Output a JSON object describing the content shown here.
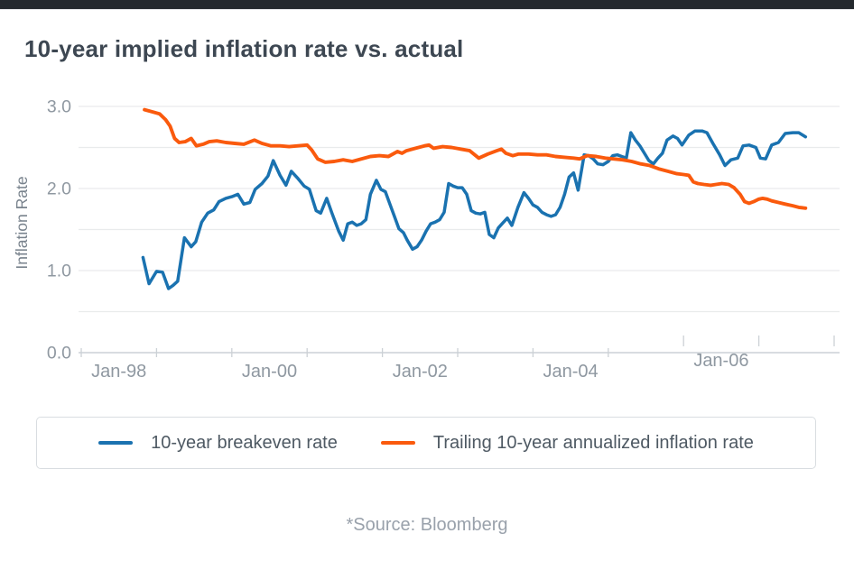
{
  "title": "10-year implied inflation rate vs. actual",
  "source": "*Source: Bloomberg",
  "colors": {
    "topbar": "#24292e",
    "grid": "#e9ebec",
    "axis_line": "#cbd0d5",
    "tick_mark": "#ccd1d6",
    "tick_label": "#8f98a1",
    "axis_title": "#79838d"
  },
  "chart_data": {
    "type": "line",
    "title": "10-year implied inflation rate vs. actual",
    "xlabel": "",
    "ylabel": "Inflation Rate",
    "ylim": [
      0.0,
      3.0
    ],
    "grid_step": 0.5,
    "grid": "horizontal-only",
    "ytick_labels": [
      "0.0",
      "1.0",
      "2.0",
      "3.0"
    ],
    "xtick_labels": [
      "Jan-98",
      "Jan-00",
      "Jan-02",
      "Jan-04",
      "Jan-06"
    ],
    "x_range_years": [
      1998,
      2008
    ],
    "legend_position": "bottom",
    "series": [
      {
        "name": "10-year breakeven rate",
        "color": "#1a72b0",
        "points": [
          [
            1998.82,
            1.16
          ],
          [
            1998.9,
            0.84
          ],
          [
            1999.0,
            0.99
          ],
          [
            1999.08,
            0.98
          ],
          [
            1999.16,
            0.78
          ],
          [
            1999.22,
            0.82
          ],
          [
            1999.28,
            0.87
          ],
          [
            1999.37,
            1.4
          ],
          [
            1999.46,
            1.29
          ],
          [
            1999.52,
            1.35
          ],
          [
            1999.6,
            1.59
          ],
          [
            1999.68,
            1.7
          ],
          [
            1999.76,
            1.74
          ],
          [
            1999.83,
            1.84
          ],
          [
            1999.92,
            1.88
          ],
          [
            2000.0,
            1.9
          ],
          [
            2000.08,
            1.93
          ],
          [
            2000.16,
            1.81
          ],
          [
            2000.24,
            1.83
          ],
          [
            2000.31,
            1.99
          ],
          [
            2000.4,
            2.06
          ],
          [
            2000.48,
            2.15
          ],
          [
            2000.55,
            2.34
          ],
          [
            2000.64,
            2.16
          ],
          [
            2000.72,
            2.04
          ],
          [
            2000.79,
            2.21
          ],
          [
            2000.88,
            2.12
          ],
          [
            2000.96,
            2.03
          ],
          [
            2001.03,
            1.99
          ],
          [
            2001.12,
            1.73
          ],
          [
            2001.18,
            1.7
          ],
          [
            2001.26,
            1.88
          ],
          [
            2001.33,
            1.7
          ],
          [
            2001.42,
            1.48
          ],
          [
            2001.48,
            1.37
          ],
          [
            2001.54,
            1.57
          ],
          [
            2001.6,
            1.59
          ],
          [
            2001.66,
            1.55
          ],
          [
            2001.72,
            1.57
          ],
          [
            2001.78,
            1.62
          ],
          [
            2001.84,
            1.93
          ],
          [
            2001.92,
            2.1
          ],
          [
            2001.98,
            1.99
          ],
          [
            2002.04,
            1.96
          ],
          [
            2002.1,
            1.81
          ],
          [
            2002.16,
            1.66
          ],
          [
            2002.22,
            1.51
          ],
          [
            2002.28,
            1.46
          ],
          [
            2002.33,
            1.37
          ],
          [
            2002.4,
            1.26
          ],
          [
            2002.46,
            1.29
          ],
          [
            2002.52,
            1.37
          ],
          [
            2002.58,
            1.48
          ],
          [
            2002.64,
            1.57
          ],
          [
            2002.7,
            1.59
          ],
          [
            2002.76,
            1.62
          ],
          [
            2002.82,
            1.71
          ],
          [
            2002.88,
            2.06
          ],
          [
            2002.94,
            2.03
          ],
          [
            2003.0,
            2.01
          ],
          [
            2003.06,
            2.01
          ],
          [
            2003.12,
            1.93
          ],
          [
            2003.18,
            1.73
          ],
          [
            2003.24,
            1.7
          ],
          [
            2003.3,
            1.69
          ],
          [
            2003.36,
            1.71
          ],
          [
            2003.42,
            1.44
          ],
          [
            2003.48,
            1.4
          ],
          [
            2003.54,
            1.52
          ],
          [
            2003.6,
            1.58
          ],
          [
            2003.66,
            1.64
          ],
          [
            2003.72,
            1.55
          ],
          [
            2003.8,
            1.77
          ],
          [
            2003.88,
            1.95
          ],
          [
            2003.94,
            1.88
          ],
          [
            2004.0,
            1.8
          ],
          [
            2004.06,
            1.77
          ],
          [
            2004.12,
            1.71
          ],
          [
            2004.18,
            1.68
          ],
          [
            2004.24,
            1.66
          ],
          [
            2004.3,
            1.68
          ],
          [
            2004.36,
            1.77
          ],
          [
            2004.42,
            1.93
          ],
          [
            2004.48,
            2.14
          ],
          [
            2004.54,
            2.19
          ],
          [
            2004.6,
            1.98
          ],
          [
            2004.68,
            2.41
          ],
          [
            2004.74,
            2.4
          ],
          [
            2004.8,
            2.36
          ],
          [
            2004.86,
            2.3
          ],
          [
            2004.93,
            2.29
          ],
          [
            2005.0,
            2.33
          ],
          [
            2005.06,
            2.4
          ],
          [
            2005.12,
            2.41
          ],
          [
            2005.18,
            2.39
          ],
          [
            2005.24,
            2.37
          ],
          [
            2005.3,
            2.68
          ],
          [
            2005.36,
            2.59
          ],
          [
            2005.42,
            2.52
          ],
          [
            2005.48,
            2.43
          ],
          [
            2005.54,
            2.34
          ],
          [
            2005.6,
            2.3
          ],
          [
            2005.66,
            2.37
          ],
          [
            2005.72,
            2.43
          ],
          [
            2005.78,
            2.59
          ],
          [
            2005.86,
            2.64
          ],
          [
            2005.92,
            2.61
          ],
          [
            2005.98,
            2.53
          ],
          [
            2006.07,
            2.65
          ],
          [
            2006.15,
            2.7
          ],
          [
            2006.25,
            2.7
          ],
          [
            2006.31,
            2.68
          ],
          [
            2006.39,
            2.55
          ],
          [
            2006.48,
            2.41
          ],
          [
            2006.55,
            2.28
          ],
          [
            2006.63,
            2.35
          ],
          [
            2006.72,
            2.37
          ],
          [
            2006.79,
            2.52
          ],
          [
            2006.87,
            2.53
          ],
          [
            2006.96,
            2.5
          ],
          [
            2007.02,
            2.37
          ],
          [
            2007.09,
            2.36
          ],
          [
            2007.17,
            2.53
          ],
          [
            2007.26,
            2.56
          ],
          [
            2007.35,
            2.67
          ],
          [
            2007.45,
            2.68
          ],
          [
            2007.53,
            2.68
          ],
          [
            2007.62,
            2.63
          ]
        ]
      },
      {
        "name": "Trailing 10-year annualized inflation rate",
        "color": "#fa5a0d",
        "points": [
          [
            1998.84,
            2.96
          ],
          [
            1998.96,
            2.93
          ],
          [
            1999.04,
            2.91
          ],
          [
            1999.12,
            2.84
          ],
          [
            1999.18,
            2.76
          ],
          [
            1999.24,
            2.61
          ],
          [
            1999.3,
            2.56
          ],
          [
            1999.38,
            2.57
          ],
          [
            1999.46,
            2.61
          ],
          [
            1999.53,
            2.52
          ],
          [
            1999.62,
            2.54
          ],
          [
            1999.7,
            2.57
          ],
          [
            1999.8,
            2.58
          ],
          [
            1999.92,
            2.56
          ],
          [
            2000.04,
            2.55
          ],
          [
            2000.16,
            2.54
          ],
          [
            2000.3,
            2.59
          ],
          [
            2000.4,
            2.55
          ],
          [
            2000.52,
            2.52
          ],
          [
            2000.64,
            2.52
          ],
          [
            2000.76,
            2.51
          ],
          [
            2000.88,
            2.52
          ],
          [
            2001.0,
            2.53
          ],
          [
            2001.06,
            2.47
          ],
          [
            2001.14,
            2.36
          ],
          [
            2001.24,
            2.32
          ],
          [
            2001.36,
            2.33
          ],
          [
            2001.48,
            2.35
          ],
          [
            2001.6,
            2.33
          ],
          [
            2001.72,
            2.36
          ],
          [
            2001.84,
            2.39
          ],
          [
            2001.96,
            2.4
          ],
          [
            2002.08,
            2.39
          ],
          [
            2002.2,
            2.45
          ],
          [
            2002.26,
            2.43
          ],
          [
            2002.32,
            2.46
          ],
          [
            2002.44,
            2.49
          ],
          [
            2002.56,
            2.52
          ],
          [
            2002.62,
            2.53
          ],
          [
            2002.68,
            2.49
          ],
          [
            2002.8,
            2.51
          ],
          [
            2002.92,
            2.5
          ],
          [
            2003.04,
            2.48
          ],
          [
            2003.16,
            2.46
          ],
          [
            2003.28,
            2.37
          ],
          [
            2003.4,
            2.42
          ],
          [
            2003.52,
            2.46
          ],
          [
            2003.58,
            2.48
          ],
          [
            2003.64,
            2.43
          ],
          [
            2003.73,
            2.4
          ],
          [
            2003.81,
            2.42
          ],
          [
            2003.94,
            2.42
          ],
          [
            2004.06,
            2.41
          ],
          [
            2004.18,
            2.41
          ],
          [
            2004.3,
            2.39
          ],
          [
            2004.42,
            2.38
          ],
          [
            2004.54,
            2.37
          ],
          [
            2004.62,
            2.36
          ],
          [
            2004.72,
            2.4
          ],
          [
            2004.84,
            2.39
          ],
          [
            2004.96,
            2.37
          ],
          [
            2005.07,
            2.36
          ],
          [
            2005.19,
            2.35
          ],
          [
            2005.31,
            2.33
          ],
          [
            2005.43,
            2.3
          ],
          [
            2005.55,
            2.28
          ],
          [
            2005.67,
            2.24
          ],
          [
            2005.79,
            2.21
          ],
          [
            2005.91,
            2.18
          ],
          [
            2006.0,
            2.17
          ],
          [
            2006.07,
            2.16
          ],
          [
            2006.13,
            2.08
          ],
          [
            2006.19,
            2.06
          ],
          [
            2006.27,
            2.05
          ],
          [
            2006.36,
            2.04
          ],
          [
            2006.43,
            2.05
          ],
          [
            2006.51,
            2.06
          ],
          [
            2006.6,
            2.05
          ],
          [
            2006.67,
            2.01
          ],
          [
            2006.75,
            1.93
          ],
          [
            2006.81,
            1.84
          ],
          [
            2006.87,
            1.82
          ],
          [
            2006.93,
            1.84
          ],
          [
            2007.0,
            1.87
          ],
          [
            2007.05,
            1.88
          ],
          [
            2007.11,
            1.87
          ],
          [
            2007.17,
            1.85
          ],
          [
            2007.26,
            1.83
          ],
          [
            2007.35,
            1.81
          ],
          [
            2007.45,
            1.79
          ],
          [
            2007.53,
            1.77
          ],
          [
            2007.62,
            1.76
          ]
        ]
      }
    ]
  }
}
